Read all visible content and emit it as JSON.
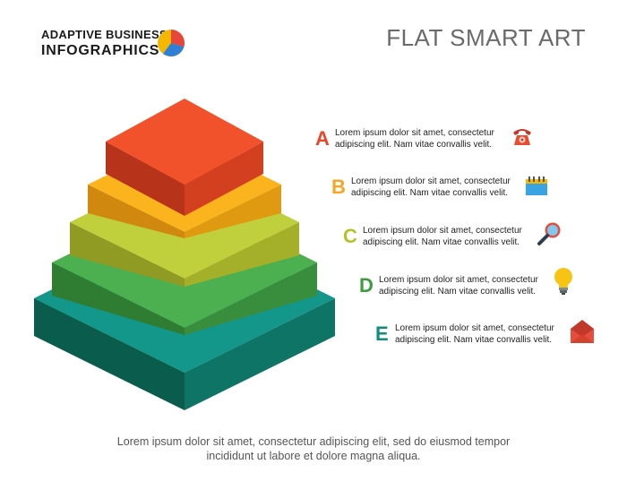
{
  "brand": {
    "line1": "ADAPTIVE BUSINESS",
    "line2": "INFOGRAPHICS"
  },
  "title": "FLAT SMART ART",
  "colors": {
    "level_a": "#f0522a",
    "level_b": "#f9a91b",
    "level_c": "#b6c632",
    "level_d": "#43a047",
    "level_e": "#0f8e7d"
  },
  "items": [
    {
      "letter": "A",
      "line1": "Lorem ipsum dolor sit amet, consectetur",
      "line2": "adipiscing elit. Nam vitae convallis velit.",
      "color": "#e8452a",
      "icon": "telephone-icon"
    },
    {
      "letter": "B",
      "line1": "Lorem ipsum dolor sit amet, consectetur",
      "line2": "adipiscing elit. Nam vitae convallis velit.",
      "color": "#f5a623",
      "icon": "calendar-icon"
    },
    {
      "letter": "C",
      "line1": "Lorem ipsum dolor sit amet, consectetur",
      "line2": "adipiscing elit. Nam vitae convallis velit.",
      "color": "#b5c22a",
      "icon": "magnifier-icon"
    },
    {
      "letter": "D",
      "line1": "Lorem ipsum dolor sit amet, consectetur",
      "line2": "adipiscing elit. Nam vitae convallis velit.",
      "color": "#3f9b3f",
      "icon": "lightbulb-icon"
    },
    {
      "letter": "E",
      "line1": "Lorem ipsum dolor sit amet, consectetur",
      "line2": "adipiscing elit. Nam vitae convallis velit.",
      "color": "#0f8e7d",
      "icon": "envelope-icon"
    }
  ],
  "footer": {
    "line1": "Lorem ipsum dolor sit amet, consectetur adipiscing elit, sed do eiusmod tempor",
    "line2": "incididunt ut labore et dolore magna aliqua."
  }
}
